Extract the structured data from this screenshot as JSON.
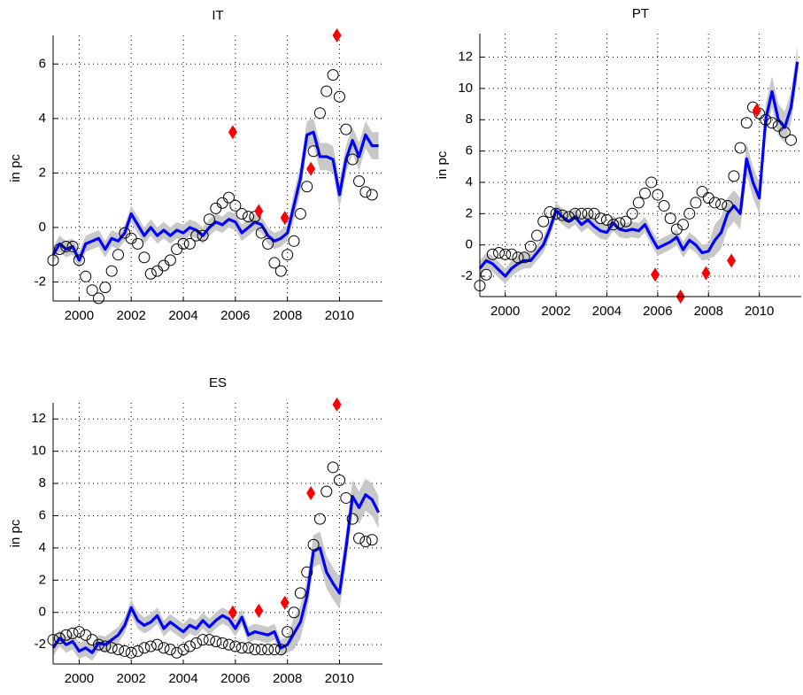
{
  "chart_data": [
    {
      "type": "line",
      "title": "IT",
      "y_label": "in pc",
      "grid": true,
      "xlim": [
        1999,
        2011.65
      ],
      "ylim": [
        -2.7,
        7.05
      ],
      "xticks": [
        2000,
        2002,
        2004,
        2006,
        2008,
        2010
      ],
      "yticks": [
        -2,
        0,
        2,
        4,
        6
      ],
      "x": [
        1999,
        1999.25,
        1999.5,
        1999.75,
        2000,
        2000.25,
        2000.5,
        2000.75,
        2001,
        2001.25,
        2001.5,
        2001.75,
        2002,
        2002.25,
        2002.5,
        2002.75,
        2003,
        2003.25,
        2003.5,
        2003.75,
        2004,
        2004.25,
        2004.5,
        2004.75,
        2005,
        2005.25,
        2005.5,
        2005.75,
        2006,
        2006.25,
        2006.5,
        2006.75,
        2007,
        2007.25,
        2007.5,
        2007.75,
        2008,
        2008.25,
        2008.5,
        2008.75,
        2009,
        2009.25,
        2009.5,
        2009.75,
        2010,
        2010.25,
        2010.5,
        2010.75,
        2011,
        2011.25,
        2011.5
      ],
      "band": {
        "color": "#c8c8c8",
        "lower": [
          -1.3,
          -0.9,
          -1.1,
          -1.0,
          -1.5,
          -0.9,
          -0.8,
          -0.7,
          -1.1,
          -0.7,
          -0.8,
          -0.5,
          0.2,
          -0.2,
          -0.6,
          -0.3,
          -0.6,
          -0.4,
          -0.6,
          -0.4,
          -0.5,
          -0.3,
          -0.4,
          -0.6,
          -0.3,
          -0.1,
          -0.2,
          0.0,
          -0.1,
          -0.5,
          -0.3,
          -0.1,
          -0.2,
          -0.6,
          -0.8,
          -0.7,
          -0.5,
          0.3,
          1.3,
          2.9,
          3.0,
          2.1,
          2.1,
          2.0,
          0.7,
          2.0,
          2.7,
          2.1,
          2.9,
          2.5,
          2.5
        ],
        "upper": [
          -0.7,
          -0.3,
          -0.5,
          -0.4,
          -0.9,
          -0.3,
          -0.2,
          -0.1,
          -0.5,
          -0.1,
          -0.2,
          0.1,
          0.8,
          0.4,
          0.0,
          0.3,
          0.0,
          0.2,
          0.0,
          0.2,
          0.1,
          0.3,
          0.2,
          0.0,
          0.3,
          0.5,
          0.4,
          0.6,
          0.5,
          0.1,
          0.3,
          0.5,
          0.4,
          0.0,
          -0.2,
          -0.1,
          0.1,
          1.3,
          2.3,
          3.9,
          4.0,
          3.1,
          3.1,
          3.0,
          1.7,
          3.0,
          3.7,
          3.1,
          3.9,
          3.5,
          3.5
        ]
      },
      "line": {
        "color": "#0000ff",
        "values": [
          -1.0,
          -0.6,
          -0.8,
          -0.7,
          -1.2,
          -0.6,
          -0.5,
          -0.4,
          -0.8,
          -0.4,
          -0.5,
          -0.2,
          0.5,
          0.1,
          -0.3,
          0.0,
          -0.3,
          -0.1,
          -0.3,
          -0.1,
          -0.2,
          0.0,
          -0.1,
          -0.3,
          0.0,
          0.2,
          0.1,
          0.3,
          0.2,
          -0.2,
          0.0,
          0.2,
          0.1,
          -0.3,
          -0.5,
          -0.4,
          -0.2,
          0.8,
          1.8,
          3.4,
          3.5,
          2.6,
          2.6,
          2.5,
          1.2,
          2.5,
          3.2,
          2.6,
          3.4,
          3.0,
          3.0
        ]
      },
      "points": {
        "color": "#000000",
        "values": [
          -1.2,
          -0.8,
          -0.7,
          -0.7,
          -1.2,
          -1.8,
          -2.3,
          -2.6,
          -2.2,
          -1.6,
          -1.0,
          -0.2,
          -0.4,
          -0.6,
          -1.1,
          -1.7,
          -1.6,
          -1.4,
          -1.2,
          -0.8,
          -0.6,
          -0.6,
          -0.3,
          -0.3,
          0.3,
          0.7,
          0.9,
          1.1,
          0.8,
          0.5,
          0.4,
          0.4,
          -0.2,
          -0.6,
          -1.3,
          -1.6,
          -1.0,
          -0.5,
          0.5,
          1.5,
          2.8,
          4.2,
          5.0,
          5.6,
          4.8,
          3.6,
          2.5,
          1.7,
          1.3,
          1.2,
          null
        ]
      },
      "markers": {
        "color": "#ff0000",
        "x": [
          2005.9,
          2006.9,
          2007.9,
          2008.9,
          2009.9
        ],
        "values": [
          3.5,
          0.6,
          0.35,
          2.15,
          7.05
        ]
      }
    },
    {
      "type": "line",
      "title": "PT",
      "y_label": "in pc",
      "grid": true,
      "xlim": [
        1999,
        2011.65
      ],
      "ylim": [
        -3.3,
        13.5
      ],
      "xticks": [
        2000,
        2002,
        2004,
        2006,
        2008,
        2010
      ],
      "yticks": [
        -2,
        0,
        2,
        4,
        6,
        8,
        10,
        12
      ],
      "x": [
        1999,
        1999.25,
        1999.5,
        1999.75,
        2000,
        2000.25,
        2000.5,
        2000.75,
        2001,
        2001.25,
        2001.5,
        2001.75,
        2002,
        2002.25,
        2002.5,
        2002.75,
        2003,
        2003.25,
        2003.5,
        2003.75,
        2004,
        2004.25,
        2004.5,
        2004.75,
        2005,
        2005.25,
        2005.5,
        2005.75,
        2006,
        2006.25,
        2006.5,
        2006.75,
        2007,
        2007.25,
        2007.5,
        2007.75,
        2008,
        2008.25,
        2008.5,
        2008.75,
        2009,
        2009.25,
        2009.5,
        2009.75,
        2010,
        2010.25,
        2010.5,
        2010.75,
        2011,
        2011.25,
        2011.5
      ],
      "band": {
        "color": "#c8c8c8",
        "lower": [
          -2.0,
          -1.5,
          -1.7,
          -2.1,
          -2.5,
          -2.0,
          -1.7,
          -1.5,
          -1.5,
          -1.0,
          -0.5,
          0.5,
          1.7,
          1.3,
          1.0,
          1.3,
          0.8,
          1.1,
          0.7,
          0.4,
          0.3,
          0.9,
          0.5,
          0.4,
          0.5,
          0.4,
          0.8,
          0.0,
          -0.7,
          -0.5,
          -0.3,
          0.0,
          -0.8,
          -0.2,
          -0.5,
          -1.0,
          -0.9,
          -0.7,
          -0.2,
          1.0,
          1.5,
          1.0,
          4.5,
          3.0,
          2.0,
          7.0,
          8.8,
          7.0,
          6.5,
          7.8,
          10.7
        ],
        "upper": [
          -1.0,
          -0.5,
          -0.7,
          -1.1,
          -1.5,
          -1.0,
          -0.7,
          -0.5,
          -0.5,
          0.0,
          0.5,
          1.5,
          2.7,
          2.3,
          2.0,
          2.3,
          1.8,
          2.1,
          1.7,
          1.4,
          1.3,
          1.9,
          1.5,
          1.4,
          1.5,
          1.4,
          1.8,
          1.0,
          0.3,
          0.5,
          0.7,
          1.0,
          0.2,
          0.8,
          0.5,
          0.0,
          0.1,
          1.3,
          1.8,
          3.0,
          3.5,
          3.0,
          6.5,
          5.0,
          4.0,
          9.0,
          10.8,
          9.0,
          8.5,
          9.8,
          12.7
        ]
      },
      "line": {
        "color": "#0000ff",
        "values": [
          -1.5,
          -1.0,
          -1.2,
          -1.6,
          -2.0,
          -1.5,
          -1.2,
          -1.0,
          -1.0,
          -0.5,
          0.0,
          1.0,
          2.2,
          1.8,
          1.5,
          1.8,
          1.3,
          1.6,
          1.2,
          0.9,
          0.8,
          1.4,
          1.0,
          0.9,
          1.0,
          0.9,
          1.3,
          0.5,
          -0.2,
          0.0,
          0.2,
          0.5,
          -0.3,
          0.3,
          0.0,
          -0.5,
          -0.4,
          0.3,
          0.8,
          2.0,
          2.5,
          2.0,
          5.5,
          4.0,
          3.0,
          8.0,
          9.8,
          8.0,
          7.5,
          8.8,
          11.7
        ]
      },
      "points": {
        "color": "#000000",
        "values": [
          -2.6,
          -1.9,
          -0.6,
          -0.5,
          -0.6,
          -0.6,
          -0.8,
          -0.8,
          -0.1,
          0.6,
          1.5,
          2.1,
          2.0,
          1.9,
          1.8,
          2.0,
          2.0,
          2.0,
          2.0,
          1.7,
          1.6,
          1.3,
          1.4,
          1.5,
          2.0,
          2.7,
          3.3,
          4.0,
          3.2,
          2.5,
          1.7,
          1.0,
          1.3,
          2.0,
          2.7,
          3.4,
          3.0,
          2.7,
          2.6,
          2.5,
          4.4,
          6.2,
          7.8,
          8.8,
          8.4,
          8.0,
          7.8,
          7.6,
          7.2,
          6.7,
          null
        ]
      },
      "markers": {
        "color": "#ff0000",
        "x": [
          2005.9,
          2006.9,
          2007.9,
          2008.9,
          2009.9
        ],
        "values": [
          -1.9,
          -3.3,
          -1.8,
          -1.0,
          8.6
        ]
      }
    },
    {
      "type": "line",
      "title": "ES",
      "y_label": "in pc",
      "grid": true,
      "xlim": [
        1999,
        2011.65
      ],
      "ylim": [
        -3.2,
        13
      ],
      "xticks": [
        2000,
        2002,
        2004,
        2006,
        2008,
        2010
      ],
      "yticks": [
        -2,
        0,
        2,
        4,
        6,
        8,
        10,
        12
      ],
      "x": [
        1999,
        1999.25,
        1999.5,
        1999.75,
        2000,
        2000.25,
        2000.5,
        2000.75,
        2001,
        2001.25,
        2001.5,
        2001.75,
        2002,
        2002.25,
        2002.5,
        2002.75,
        2003,
        2003.25,
        2003.5,
        2003.75,
        2004,
        2004.25,
        2004.5,
        2004.75,
        2005,
        2005.25,
        2005.5,
        2005.75,
        2006,
        2006.25,
        2006.5,
        2006.75,
        2007,
        2007.25,
        2007.5,
        2007.75,
        2008,
        2008.25,
        2008.5,
        2008.75,
        2009,
        2009.25,
        2009.5,
        2009.75,
        2010,
        2010.25,
        2010.5,
        2010.75,
        2011,
        2011.25,
        2011.5
      ],
      "band": {
        "color": "#c8c8c8",
        "lower": [
          -2.7,
          -2.1,
          -2.5,
          -2.3,
          -2.9,
          -2.7,
          -3.0,
          -2.4,
          -2.5,
          -2.2,
          -1.9,
          -1.3,
          -0.2,
          -1.0,
          -1.3,
          -1.1,
          -0.7,
          -1.5,
          -1.1,
          -1.4,
          -1.7,
          -1.3,
          -1.5,
          -1.0,
          -1.4,
          -1.0,
          -0.7,
          -0.9,
          -1.5,
          -0.8,
          -1.9,
          -1.7,
          -1.8,
          -1.9,
          -1.7,
          -2.7,
          -2.5,
          -2.3,
          -1.6,
          0.0,
          2.8,
          3.0,
          1.5,
          0.8,
          0.2,
          3.0,
          6.2,
          5.5,
          6.3,
          6.0,
          5.2
        ],
        "upper": [
          -1.7,
          -1.1,
          -1.5,
          -1.3,
          -1.9,
          -1.7,
          -2.0,
          -1.4,
          -1.5,
          -1.2,
          -0.9,
          -0.3,
          0.8,
          0.0,
          -0.3,
          -0.1,
          0.3,
          -0.5,
          -0.1,
          -0.4,
          -0.7,
          -0.3,
          -0.5,
          0.0,
          -0.4,
          0.0,
          0.3,
          0.1,
          -0.5,
          0.2,
          -0.9,
          -0.7,
          -0.8,
          -0.9,
          -0.7,
          -1.7,
          -1.5,
          -0.3,
          0.4,
          2.0,
          4.8,
          5.0,
          3.5,
          2.8,
          2.2,
          5.0,
          8.2,
          7.5,
          8.3,
          8.0,
          7.2
        ]
      },
      "line": {
        "color": "#0000ff",
        "values": [
          -2.2,
          -1.6,
          -2.0,
          -1.8,
          -2.4,
          -2.2,
          -2.5,
          -1.9,
          -2.0,
          -1.7,
          -1.4,
          -0.8,
          0.3,
          -0.5,
          -0.8,
          -0.6,
          -0.2,
          -1.0,
          -0.6,
          -0.9,
          -1.2,
          -0.8,
          -1.0,
          -0.5,
          -0.9,
          -0.5,
          -0.2,
          -0.4,
          -1.0,
          -0.3,
          -1.4,
          -1.2,
          -1.3,
          -1.4,
          -1.2,
          -2.2,
          -2.0,
          -1.3,
          -0.6,
          1.0,
          3.8,
          4.0,
          2.5,
          1.8,
          1.2,
          4.0,
          7.2,
          6.5,
          7.3,
          7.0,
          6.2
        ]
      },
      "points": {
        "color": "#000000",
        "values": [
          -1.7,
          -1.6,
          -1.4,
          -1.3,
          -1.2,
          -1.4,
          -1.7,
          -2.0,
          -2.1,
          -2.2,
          -2.3,
          -2.4,
          -2.5,
          -2.4,
          -2.2,
          -2.1,
          -2.0,
          -2.2,
          -2.3,
          -2.5,
          -2.3,
          -2.1,
          -1.9,
          -1.7,
          -1.7,
          -1.8,
          -1.9,
          -2.0,
          -2.1,
          -2.2,
          -2.2,
          -2.3,
          -2.3,
          -2.3,
          -2.3,
          -2.3,
          -1.2,
          0.0,
          1.2,
          2.5,
          4.2,
          5.8,
          7.5,
          9.0,
          8.2,
          7.1,
          5.8,
          4.6,
          4.4,
          4.5,
          null
        ]
      },
      "markers": {
        "color": "#ff0000",
        "x": [
          2005.9,
          2006.9,
          2007.9,
          2008.9,
          2009.9
        ],
        "values": [
          0.0,
          0.1,
          0.6,
          7.4,
          12.9
        ]
      }
    }
  ]
}
